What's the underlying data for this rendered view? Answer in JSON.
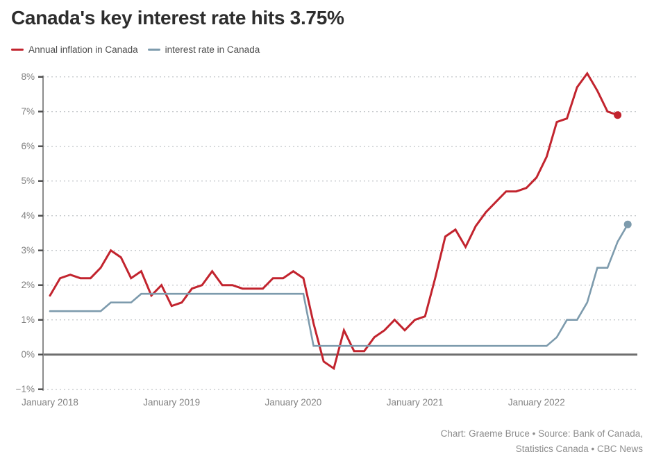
{
  "header": {
    "title": "Canada's key interest rate hits 3.75%"
  },
  "legend": {
    "items": [
      {
        "label": "Annual inflation in Canada",
        "color": "#c2242e"
      },
      {
        "label": "interest rate in Canada",
        "color": "#7d9bad"
      }
    ]
  },
  "footer": {
    "line1": "Chart: Graeme Bruce • Source: Bank of Canada,",
    "line2": "Statistics Canada • CBC News"
  },
  "chart_data": {
    "type": "line",
    "title": "Canada's key interest rate hits 3.75%",
    "x_unit": "month",
    "x_range": [
      "January 2018",
      "October 2022"
    ],
    "ylim": [
      -1,
      8
    ],
    "grid": "horizontal-dotted",
    "zero_baseline": true,
    "legend_position": "top-left",
    "x_axis": {
      "ticks": [
        {
          "label": "January 2018",
          "month_index": 0
        },
        {
          "label": "January 2019",
          "month_index": 12
        },
        {
          "label": "January 2020",
          "month_index": 24
        },
        {
          "label": "January 2021",
          "month_index": 36
        },
        {
          "label": "January 2022",
          "month_index": 48
        }
      ]
    },
    "y_axis": {
      "unit": "%",
      "ticks": [
        {
          "label": "8%",
          "value": 8
        },
        {
          "label": "7%",
          "value": 7
        },
        {
          "label": "6%",
          "value": 6
        },
        {
          "label": "5%",
          "value": 5
        },
        {
          "label": "4%",
          "value": 4
        },
        {
          "label": "3%",
          "value": 3
        },
        {
          "label": "2%",
          "value": 2
        },
        {
          "label": "1%",
          "value": 1
        },
        {
          "label": "0%",
          "value": 0
        },
        {
          "label": "−1%",
          "value": -1
        }
      ]
    },
    "series": [
      {
        "id": "inflation",
        "name": "Annual inflation in Canada",
        "color": "#c2242e",
        "start_month": "January 2018",
        "end_month": "September 2022",
        "end_dot": true,
        "values": [
          1.7,
          2.2,
          2.3,
          2.2,
          2.2,
          2.5,
          3.0,
          2.8,
          2.2,
          2.4,
          1.7,
          2.0,
          1.4,
          1.5,
          1.9,
          2.0,
          2.4,
          2.0,
          2.0,
          1.9,
          1.9,
          1.9,
          2.2,
          2.2,
          2.4,
          2.2,
          0.9,
          -0.2,
          -0.4,
          0.7,
          0.1,
          0.1,
          0.5,
          0.7,
          1.0,
          0.7,
          1.0,
          1.1,
          2.2,
          3.4,
          3.6,
          3.1,
          3.7,
          4.1,
          4.4,
          4.7,
          4.7,
          4.8,
          5.1,
          5.7,
          6.7,
          6.8,
          7.7,
          8.1,
          7.6,
          7.0,
          6.9
        ]
      },
      {
        "id": "interest-rate",
        "name": "interest rate in Canada",
        "color": "#7d9bad",
        "start_month": "January 2018",
        "end_month": "October 2022",
        "end_dot": true,
        "values": [
          1.25,
          1.25,
          1.25,
          1.25,
          1.25,
          1.25,
          1.5,
          1.5,
          1.5,
          1.75,
          1.75,
          1.75,
          1.75,
          1.75,
          1.75,
          1.75,
          1.75,
          1.75,
          1.75,
          1.75,
          1.75,
          1.75,
          1.75,
          1.75,
          1.75,
          1.75,
          0.25,
          0.25,
          0.25,
          0.25,
          0.25,
          0.25,
          0.25,
          0.25,
          0.25,
          0.25,
          0.25,
          0.25,
          0.25,
          0.25,
          0.25,
          0.25,
          0.25,
          0.25,
          0.25,
          0.25,
          0.25,
          0.25,
          0.25,
          0.25,
          0.5,
          1.0,
          1.0,
          1.5,
          2.5,
          2.5,
          3.25,
          3.75
        ]
      }
    ]
  }
}
